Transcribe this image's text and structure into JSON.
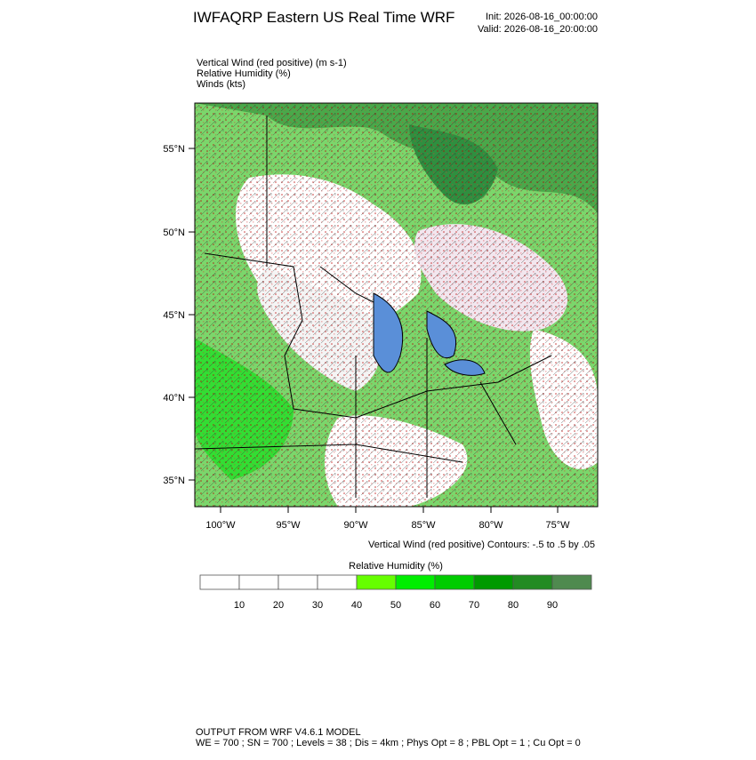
{
  "title": "IWFAQRP Eastern US Real Time WRF",
  "init": "Init: 2026-08-16_00:00:00",
  "valid": "Valid: 2026-08-16_20:00:00",
  "fields": [
    "Vertical Wind (red positive)   (m s-1)",
    "Relative Humidity   (%)",
    "Winds   (kts)"
  ],
  "lat_labels": [
    "55°N",
    "50°N",
    "45°N",
    "40°N",
    "35°N"
  ],
  "lon_labels": [
    "100°W",
    "95°W",
    "90°W",
    "85°W",
    "80°W",
    "75°W"
  ],
  "contour_note": "Vertical Wind (red positive) Contours: -.5 to .5 by .05",
  "colorbar": {
    "title": "Relative Humidity  (%)",
    "ticks": [
      10,
      20,
      30,
      40,
      50,
      60,
      70,
      80,
      90
    ],
    "colors": [
      "#ffffff",
      "#ffffff",
      "#ffffff",
      "#ffffff",
      "#66ff00",
      "#00ee00",
      "#00cc00",
      "#009a00",
      "#228b22",
      "#4f8a4f"
    ]
  },
  "footer": [
    "OUTPUT FROM WRF V4.6.1 MODEL",
    "WE = 700 ; SN = 700 ; Levels = 38 ; Dis = 4km ; Phys Opt = 8 ; PBL Opt = 1 ; Cu Opt = 0"
  ]
}
